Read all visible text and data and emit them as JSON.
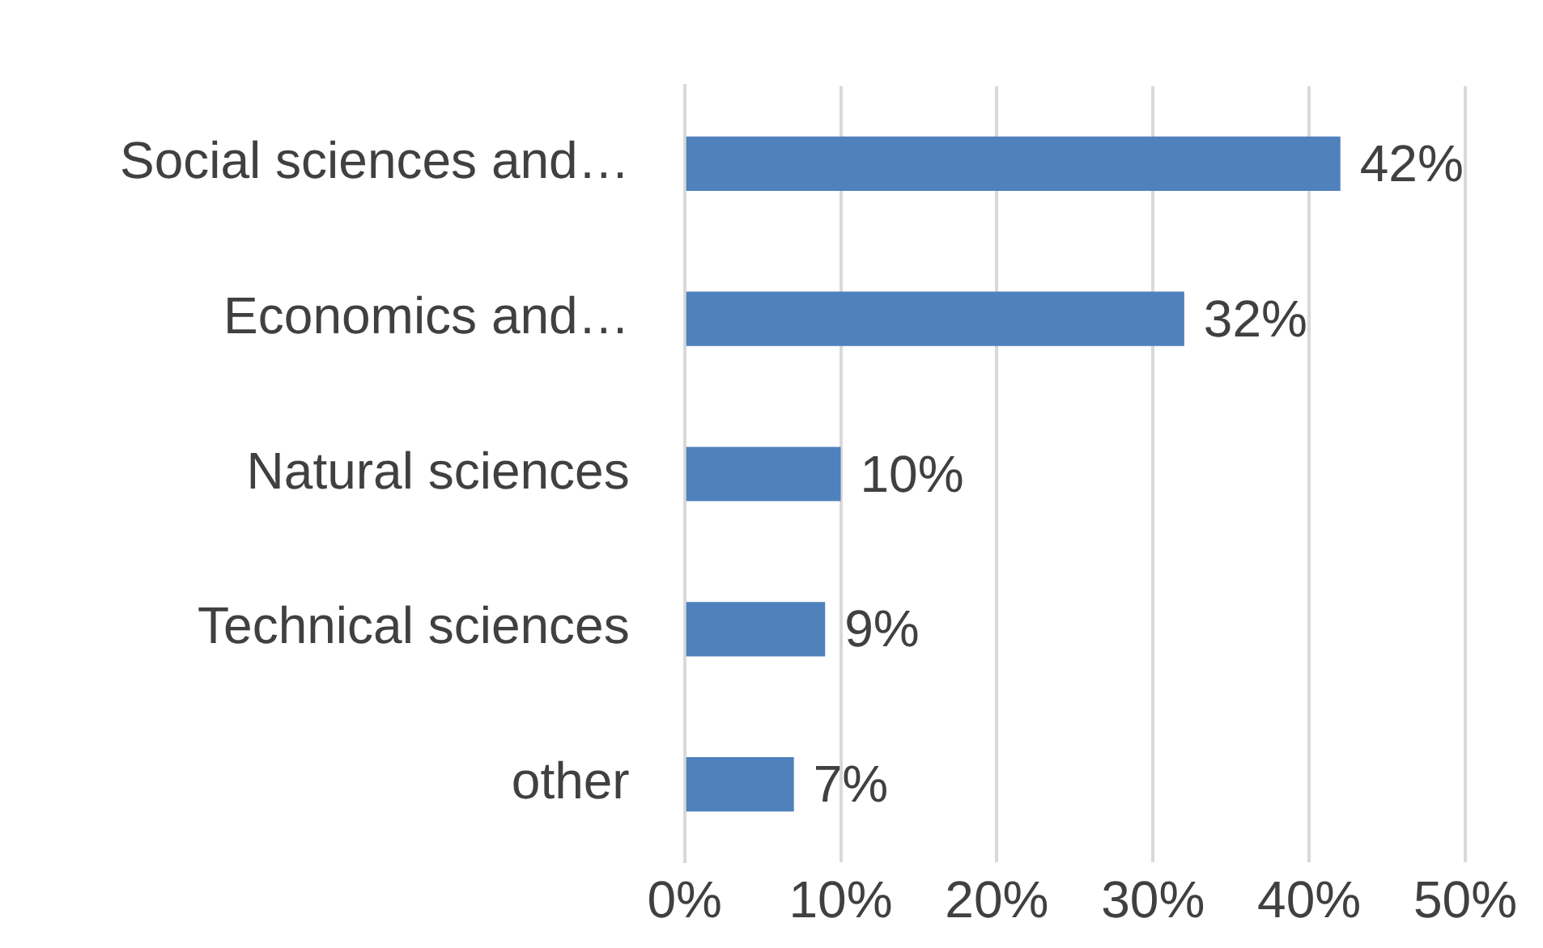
{
  "chart_data": {
    "type": "bar",
    "orientation": "horizontal",
    "categories": [
      "Social sciences and…",
      "Economics and…",
      "Natural sciences",
      "Technical sciences",
      "other"
    ],
    "values": [
      42,
      32,
      10,
      9,
      7
    ],
    "value_labels": [
      "42%",
      "32%",
      "10%",
      "9%",
      "7%"
    ],
    "color": "#4f81bd",
    "xlim": [
      0,
      50
    ],
    "xticks": [
      {
        "value": 0,
        "label": "0%"
      },
      {
        "value": 10,
        "label": "10%"
      },
      {
        "value": 20,
        "label": "20%"
      },
      {
        "value": 30,
        "label": "30%"
      },
      {
        "value": 40,
        "label": "40%"
      },
      {
        "value": 50,
        "label": "50%"
      }
    ],
    "grid": "x",
    "legend": false
  }
}
